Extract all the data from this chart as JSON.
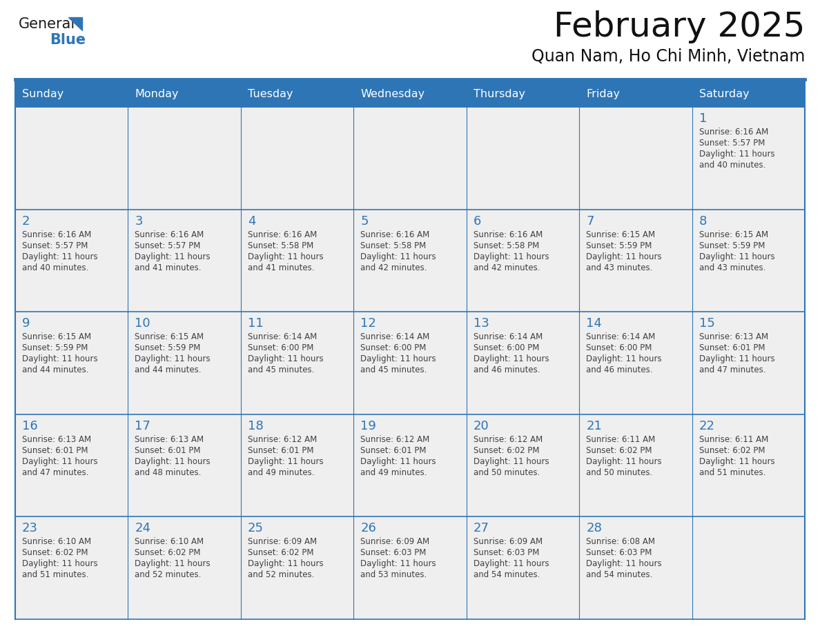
{
  "title": "February 2025",
  "subtitle": "Quan Nam, Ho Chi Minh, Vietnam",
  "days_of_week": [
    "Sunday",
    "Monday",
    "Tuesday",
    "Wednesday",
    "Thursday",
    "Friday",
    "Saturday"
  ],
  "header_bg": "#2E75B6",
  "header_text": "#FFFFFF",
  "cell_bg": "#EFEFEF",
  "day_num_color": "#2E75B6",
  "text_color": "#404040",
  "line_color": "#2E75B6",
  "logo_general_color": "#1a1a1a",
  "logo_blue_color": "#2E75B6",
  "calendar_data": [
    [
      {
        "day": null,
        "sunrise": null,
        "sunset": null,
        "daylight_hours": null,
        "daylight_mins": null
      },
      {
        "day": null,
        "sunrise": null,
        "sunset": null,
        "daylight_hours": null,
        "daylight_mins": null
      },
      {
        "day": null,
        "sunrise": null,
        "sunset": null,
        "daylight_hours": null,
        "daylight_mins": null
      },
      {
        "day": null,
        "sunrise": null,
        "sunset": null,
        "daylight_hours": null,
        "daylight_mins": null
      },
      {
        "day": null,
        "sunrise": null,
        "sunset": null,
        "daylight_hours": null,
        "daylight_mins": null
      },
      {
        "day": null,
        "sunrise": null,
        "sunset": null,
        "daylight_hours": null,
        "daylight_mins": null
      },
      {
        "day": 1,
        "sunrise": "6:16 AM",
        "sunset": "5:57 PM",
        "daylight_hours": "11 hours",
        "daylight_mins": "and 40 minutes."
      }
    ],
    [
      {
        "day": 2,
        "sunrise": "6:16 AM",
        "sunset": "5:57 PM",
        "daylight_hours": "11 hours",
        "daylight_mins": "and 40 minutes."
      },
      {
        "day": 3,
        "sunrise": "6:16 AM",
        "sunset": "5:57 PM",
        "daylight_hours": "11 hours",
        "daylight_mins": "and 41 minutes."
      },
      {
        "day": 4,
        "sunrise": "6:16 AM",
        "sunset": "5:58 PM",
        "daylight_hours": "11 hours",
        "daylight_mins": "and 41 minutes."
      },
      {
        "day": 5,
        "sunrise": "6:16 AM",
        "sunset": "5:58 PM",
        "daylight_hours": "11 hours",
        "daylight_mins": "and 42 minutes."
      },
      {
        "day": 6,
        "sunrise": "6:16 AM",
        "sunset": "5:58 PM",
        "daylight_hours": "11 hours",
        "daylight_mins": "and 42 minutes."
      },
      {
        "day": 7,
        "sunrise": "6:15 AM",
        "sunset": "5:59 PM",
        "daylight_hours": "11 hours",
        "daylight_mins": "and 43 minutes."
      },
      {
        "day": 8,
        "sunrise": "6:15 AM",
        "sunset": "5:59 PM",
        "daylight_hours": "11 hours",
        "daylight_mins": "and 43 minutes."
      }
    ],
    [
      {
        "day": 9,
        "sunrise": "6:15 AM",
        "sunset": "5:59 PM",
        "daylight_hours": "11 hours",
        "daylight_mins": "and 44 minutes."
      },
      {
        "day": 10,
        "sunrise": "6:15 AM",
        "sunset": "5:59 PM",
        "daylight_hours": "11 hours",
        "daylight_mins": "and 44 minutes."
      },
      {
        "day": 11,
        "sunrise": "6:14 AM",
        "sunset": "6:00 PM",
        "daylight_hours": "11 hours",
        "daylight_mins": "and 45 minutes."
      },
      {
        "day": 12,
        "sunrise": "6:14 AM",
        "sunset": "6:00 PM",
        "daylight_hours": "11 hours",
        "daylight_mins": "and 45 minutes."
      },
      {
        "day": 13,
        "sunrise": "6:14 AM",
        "sunset": "6:00 PM",
        "daylight_hours": "11 hours",
        "daylight_mins": "and 46 minutes."
      },
      {
        "day": 14,
        "sunrise": "6:14 AM",
        "sunset": "6:00 PM",
        "daylight_hours": "11 hours",
        "daylight_mins": "and 46 minutes."
      },
      {
        "day": 15,
        "sunrise": "6:13 AM",
        "sunset": "6:01 PM",
        "daylight_hours": "11 hours",
        "daylight_mins": "and 47 minutes."
      }
    ],
    [
      {
        "day": 16,
        "sunrise": "6:13 AM",
        "sunset": "6:01 PM",
        "daylight_hours": "11 hours",
        "daylight_mins": "and 47 minutes."
      },
      {
        "day": 17,
        "sunrise": "6:13 AM",
        "sunset": "6:01 PM",
        "daylight_hours": "11 hours",
        "daylight_mins": "and 48 minutes."
      },
      {
        "day": 18,
        "sunrise": "6:12 AM",
        "sunset": "6:01 PM",
        "daylight_hours": "11 hours",
        "daylight_mins": "and 49 minutes."
      },
      {
        "day": 19,
        "sunrise": "6:12 AM",
        "sunset": "6:01 PM",
        "daylight_hours": "11 hours",
        "daylight_mins": "and 49 minutes."
      },
      {
        "day": 20,
        "sunrise": "6:12 AM",
        "sunset": "6:02 PM",
        "daylight_hours": "11 hours",
        "daylight_mins": "and 50 minutes."
      },
      {
        "day": 21,
        "sunrise": "6:11 AM",
        "sunset": "6:02 PM",
        "daylight_hours": "11 hours",
        "daylight_mins": "and 50 minutes."
      },
      {
        "day": 22,
        "sunrise": "6:11 AM",
        "sunset": "6:02 PM",
        "daylight_hours": "11 hours",
        "daylight_mins": "and 51 minutes."
      }
    ],
    [
      {
        "day": 23,
        "sunrise": "6:10 AM",
        "sunset": "6:02 PM",
        "daylight_hours": "11 hours",
        "daylight_mins": "and 51 minutes."
      },
      {
        "day": 24,
        "sunrise": "6:10 AM",
        "sunset": "6:02 PM",
        "daylight_hours": "11 hours",
        "daylight_mins": "and 52 minutes."
      },
      {
        "day": 25,
        "sunrise": "6:09 AM",
        "sunset": "6:02 PM",
        "daylight_hours": "11 hours",
        "daylight_mins": "and 52 minutes."
      },
      {
        "day": 26,
        "sunrise": "6:09 AM",
        "sunset": "6:03 PM",
        "daylight_hours": "11 hours",
        "daylight_mins": "and 53 minutes."
      },
      {
        "day": 27,
        "sunrise": "6:09 AM",
        "sunset": "6:03 PM",
        "daylight_hours": "11 hours",
        "daylight_mins": "and 54 minutes."
      },
      {
        "day": 28,
        "sunrise": "6:08 AM",
        "sunset": "6:03 PM",
        "daylight_hours": "11 hours",
        "daylight_mins": "and 54 minutes."
      },
      {
        "day": null,
        "sunrise": null,
        "sunset": null,
        "daylight_hours": null,
        "daylight_mins": null
      }
    ]
  ]
}
